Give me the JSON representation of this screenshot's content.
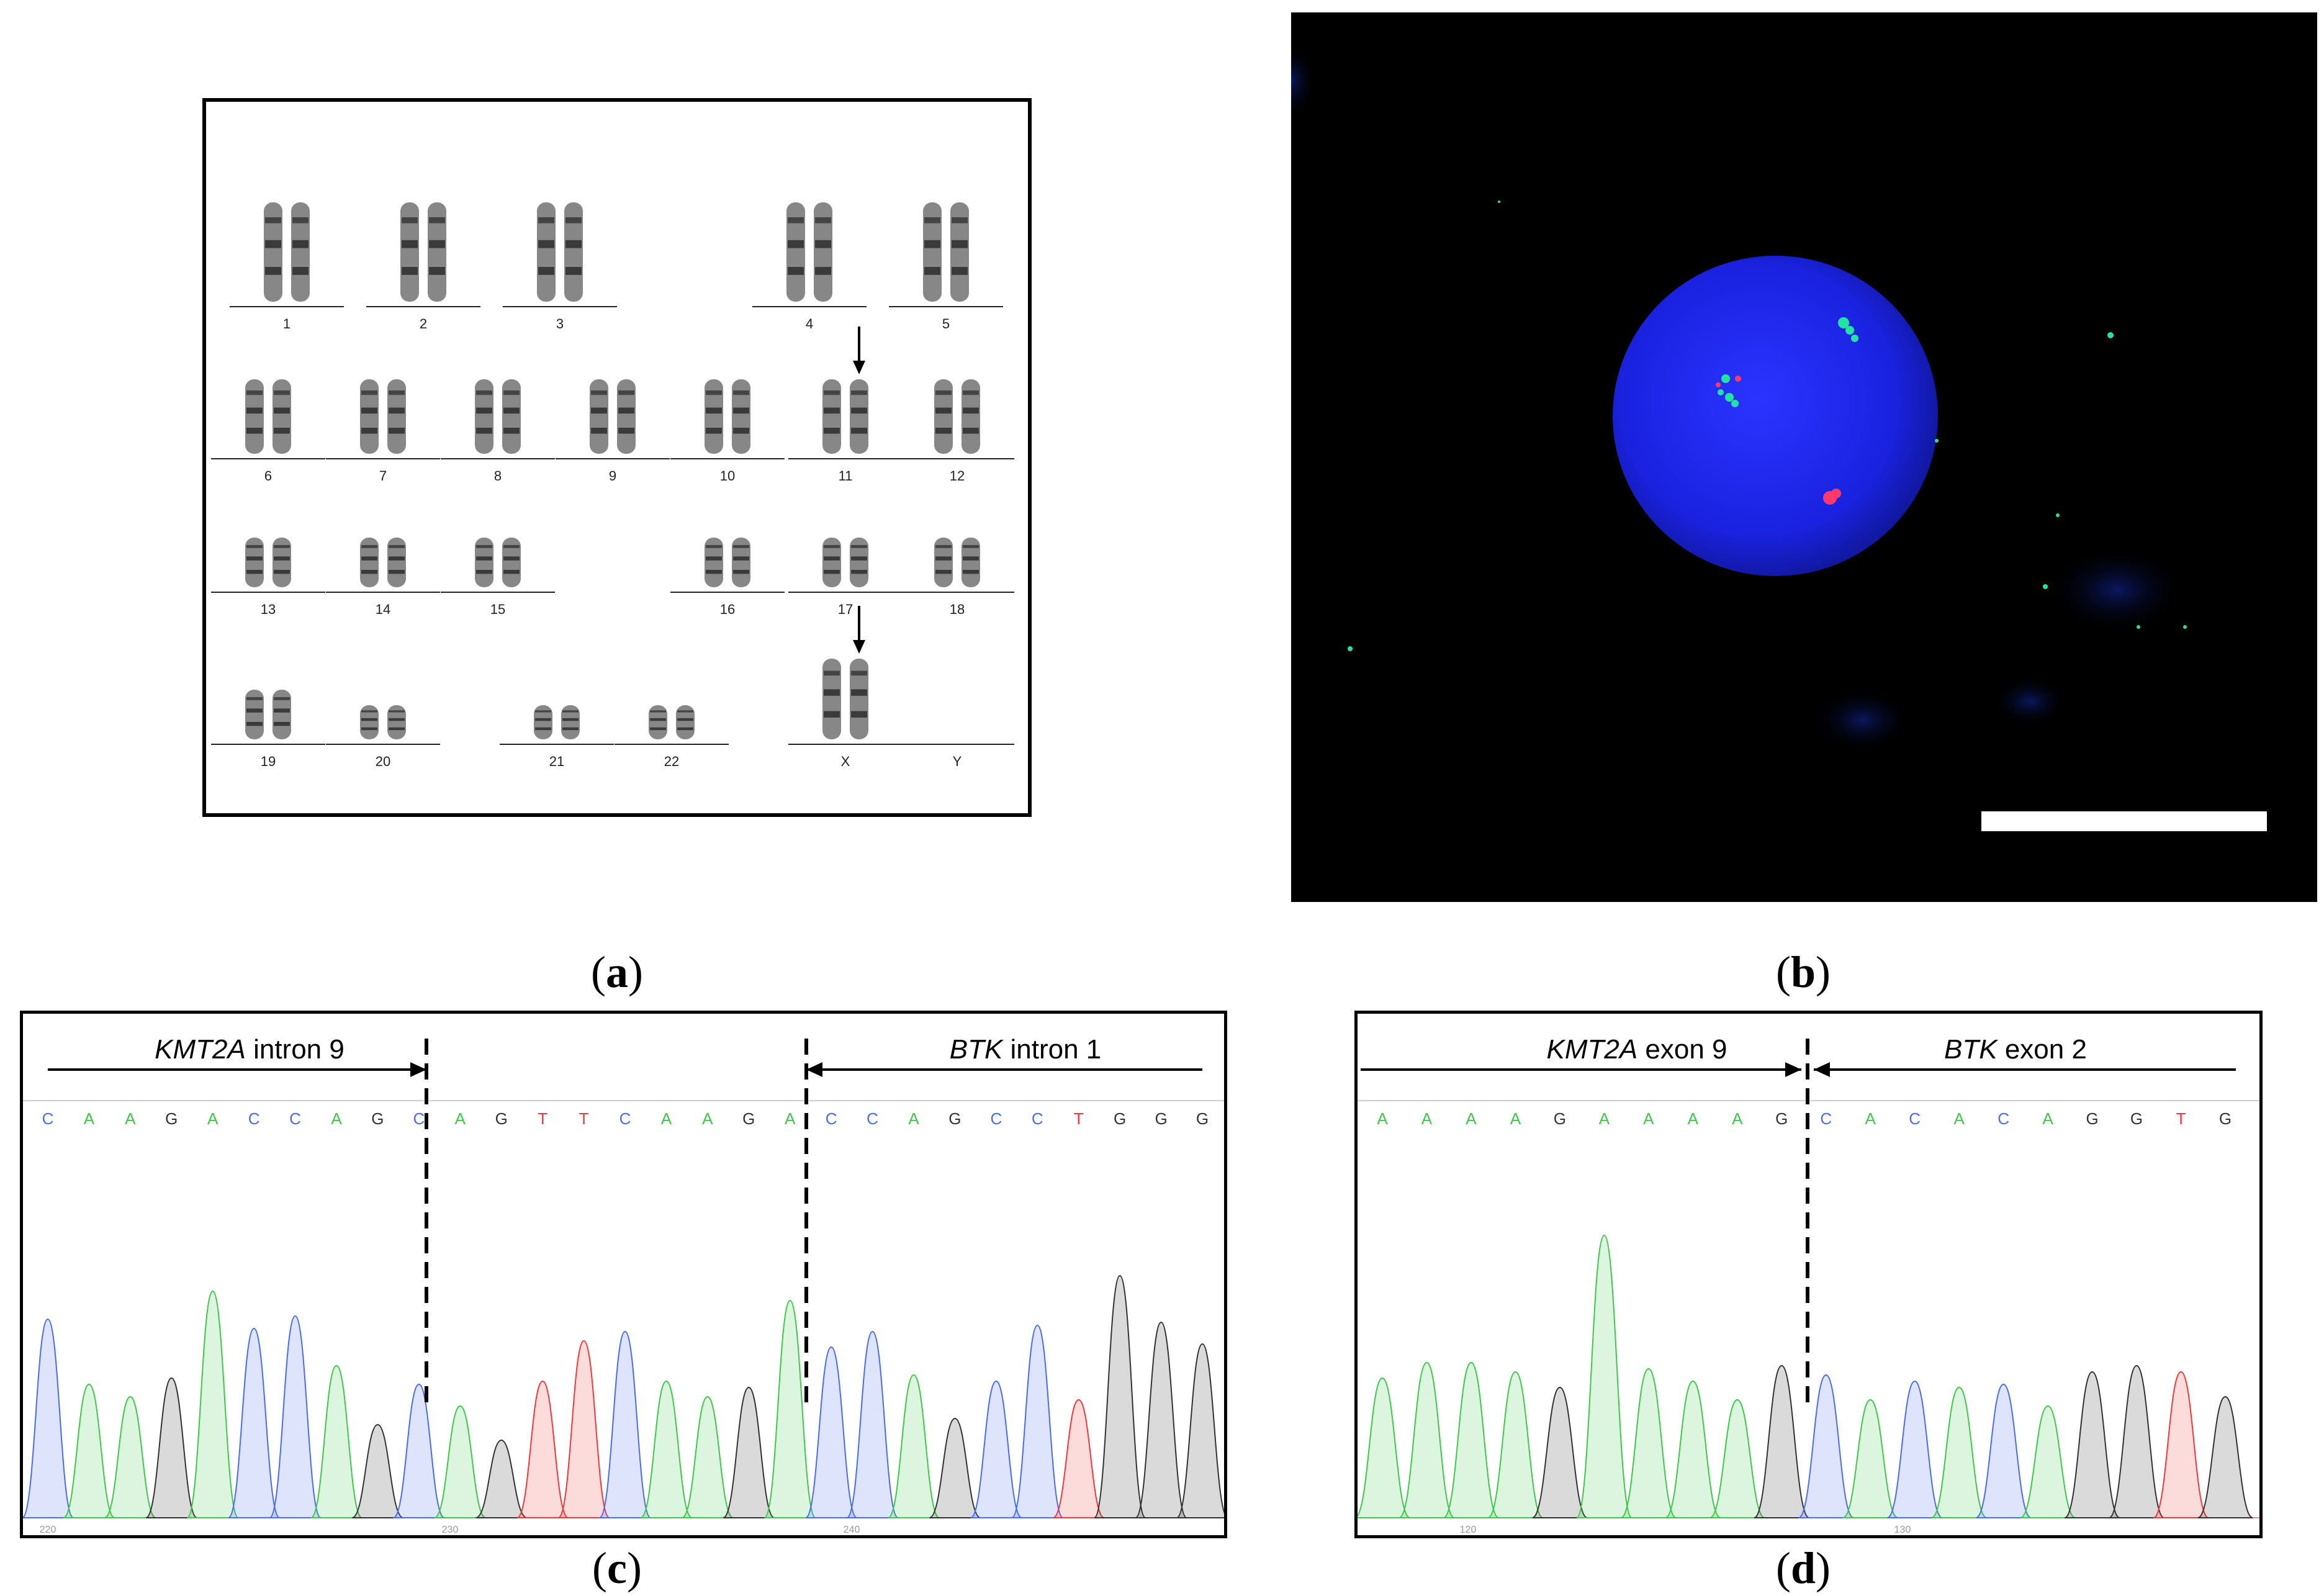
{
  "captions": {
    "a": "a",
    "b": "b",
    "c": "c",
    "d": "d"
  },
  "karyotype": {
    "rows": [
      [
        "1",
        "2",
        "3",
        "4",
        "5"
      ],
      [
        "6",
        "7",
        "8",
        "9",
        "10",
        "11",
        "12"
      ],
      [
        "13",
        "14",
        "15",
        "16",
        "17",
        "18"
      ],
      [
        "19",
        "20",
        "21",
        "22",
        "X",
        "Y"
      ]
    ],
    "arrow_marked": [
      "11",
      "X"
    ]
  },
  "fish": {
    "nucleus_color": "#1a24e0",
    "red_signal": "#ff3a6a",
    "green_signal": "#23e3a3",
    "scale_bar": "white"
  },
  "seq_c": {
    "left_label_gene": "KMT2A",
    "left_label_rest": " intron 9",
    "right_label_gene": "BTK",
    "right_label_rest": " intron 1",
    "bases": [
      "C",
      "A",
      "A",
      "G",
      "A",
      "C",
      "C",
      "A",
      "G",
      "C",
      "A",
      "G",
      "T",
      "T",
      "C",
      "A",
      "A",
      "G",
      "A",
      "C",
      "C",
      "A",
      "G",
      "C",
      "C",
      "T",
      "G",
      "G",
      "G"
    ],
    "positions": [
      "220",
      "230",
      "240"
    ]
  },
  "seq_d": {
    "left_label_gene": "KMT2A",
    "left_label_rest": " exon 9",
    "right_label_gene": "BTK",
    "right_label_rest": " exon 2",
    "bases": [
      "A",
      "A",
      "A",
      "A",
      "G",
      "A",
      "A",
      "A",
      "A",
      "G",
      "C",
      "A",
      "C",
      "A",
      "C",
      "A",
      "G",
      "G",
      "T",
      "G"
    ],
    "positions": [
      "120",
      "130"
    ]
  },
  "base_colors": {
    "A": "#3fc84a",
    "C": "#4a6cf0",
    "G": "#333333",
    "T": "#f03a3a"
  }
}
